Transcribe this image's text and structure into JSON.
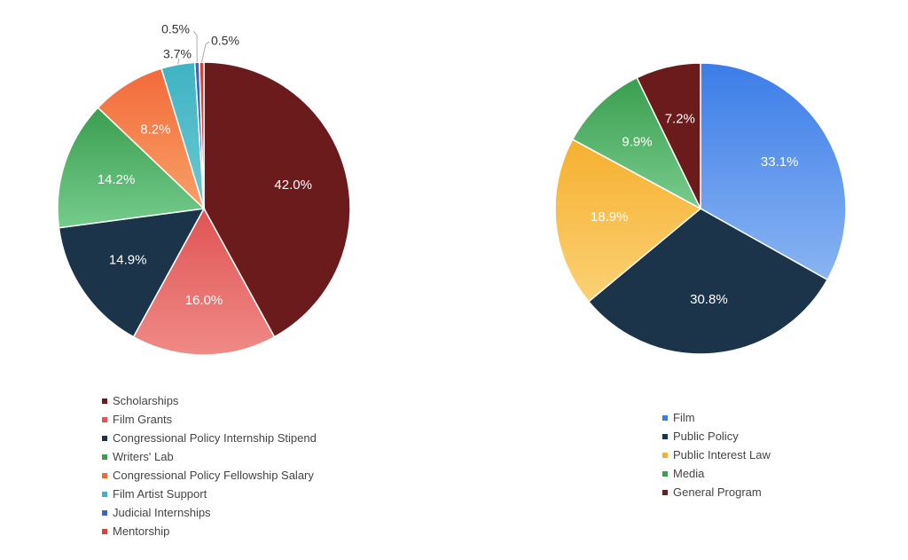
{
  "chart_data": [
    {
      "type": "pie",
      "legend_position": "bottom",
      "series": [
        {
          "name": "Scholarships",
          "value": 42.0,
          "label": "42.0%",
          "color": "#6b1b1b",
          "color_light": "#6b1b1b"
        },
        {
          "name": "Film Grants",
          "value": 16.0,
          "label": "16.0%",
          "color": "#e05454",
          "color_light": "#ef8a86"
        },
        {
          "name": "Congressional Policy Internship Stipend",
          "value": 14.9,
          "label": "14.9%",
          "color": "#1b344a",
          "color_light": "#1b344a"
        },
        {
          "name": "Writers' Lab",
          "value": 14.2,
          "label": "14.2%",
          "color": "#3a9e4f",
          "color_light": "#75cc8c"
        },
        {
          "name": "Congressional Policy Fellowship Salary",
          "value": 8.2,
          "label": "8.2%",
          "color": "#f26a3a",
          "color_light": "#f8a067"
        },
        {
          "name": "Film Artist Support",
          "value": 3.7,
          "label": "3.7%",
          "color": "#3fb3c2",
          "color_light": "#6cc8d4"
        },
        {
          "name": "Judicial Internships",
          "value": 0.5,
          "label": "0.5%",
          "color": "#3a66c4",
          "color_light": "#3a66c4"
        },
        {
          "name": "Mentorship",
          "value": 0.5,
          "label": "0.5%",
          "color": "#d2443c",
          "color_light": "#d2443c"
        }
      ]
    },
    {
      "type": "pie",
      "legend_position": "bottom",
      "series": [
        {
          "name": "Film",
          "value": 33.1,
          "label": "33.1%",
          "color": "#3b7de8",
          "color_light": "#8ab4f2"
        },
        {
          "name": "Public Policy",
          "value": 30.8,
          "label": "30.8%",
          "color": "#1b344a",
          "color_light": "#1b344a"
        },
        {
          "name": "Public Interest Law",
          "value": 18.9,
          "label": "18.9%",
          "color": "#f6b02f",
          "color_light": "#fbd174"
        },
        {
          "name": "Media",
          "value": 9.9,
          "label": "9.9%",
          "color": "#3a9e4f",
          "color_light": "#78cc8c"
        },
        {
          "name": "General Program",
          "value": 7.2,
          "label": "7.2%",
          "color": "#6b1b1b",
          "color_light": "#6b1b1b"
        }
      ]
    }
  ]
}
